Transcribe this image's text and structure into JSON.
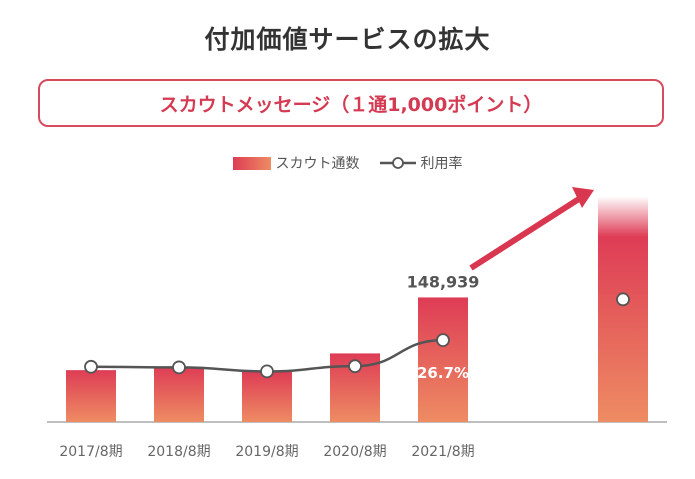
{
  "title": "付加価値サービスの拡大",
  "subtitle": "スカウトメッセージ（１通1,000ポイント）",
  "legend": {
    "bars": "スカウト通数",
    "line": "利用率"
  },
  "chart_data": {
    "type": "bar",
    "categories": [
      "2017/8期",
      "2018/8期",
      "2019/8期",
      "2020/8期",
      "2021/8期",
      ""
    ],
    "series": [
      {
        "name": "スカウト通数",
        "kind": "bar",
        "values": [
          62000,
          66000,
          60000,
          82000,
          148939,
          270000
        ]
      },
      {
        "name": "利用率",
        "kind": "line",
        "values": [
          18.0,
          17.8,
          16.5,
          18.2,
          26.7,
          40.0
        ]
      }
    ],
    "ylim": [
      0,
      275000
    ],
    "line_ylim": [
      0,
      75
    ],
    "data_labels": {
      "bar": [
        "",
        "",
        "",
        "",
        "148,939",
        ""
      ],
      "line": [
        "",
        "",
        "",
        "",
        "26.7%",
        ""
      ]
    },
    "future_bar": true,
    "arrow": "growth arrow toward future bar",
    "colors": {
      "bar_top": "#de3c55",
      "bar_bottom": "#ee8c63",
      "line": "#555555",
      "arrow": "#d9374f",
      "axis": "#999999"
    }
  }
}
